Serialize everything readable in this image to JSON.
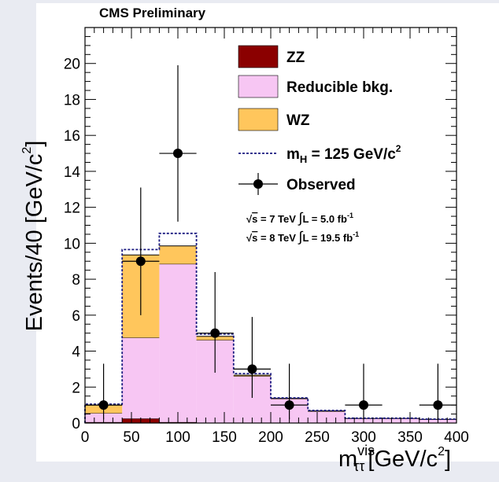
{
  "chart_data": {
    "type": "bar",
    "title": "CMS Preliminary",
    "xlabel_base": "m",
    "xlabel_sup": "vis",
    "xlabel_sub": "ττ",
    "xlabel_unit": "[GeV/c",
    "xlabel_unit_sup": "2",
    "xlabel_unit_end": "]",
    "ylabel_main": "Events/40 [GeV/c",
    "ylabel_sup": "2",
    "ylabel_end": "]",
    "xlim": [
      0,
      400
    ],
    "ylim": [
      0,
      22
    ],
    "xticks": [
      0,
      50,
      100,
      150,
      200,
      250,
      300,
      350,
      400
    ],
    "yticks": [
      0,
      2,
      4,
      6,
      8,
      10,
      12,
      14,
      16,
      18,
      20
    ],
    "bin_edges": [
      0,
      40,
      80,
      120,
      160,
      200,
      240,
      280,
      320,
      360,
      400
    ],
    "stack": [
      {
        "name": "ZZ",
        "color": "#8b0000",
        "values": [
          0.05,
          0.25,
          0.05,
          0.02,
          0.01,
          0.0,
          0.0,
          0.0,
          0.0,
          0.0
        ]
      },
      {
        "name": "Reducible bkg.",
        "color": "#f7c6f3",
        "values": [
          0.5,
          4.5,
          8.8,
          4.6,
          2.6,
          1.35,
          0.65,
          0.25,
          0.25,
          0.2
        ]
      },
      {
        "name": "WZ",
        "color": "#ffc65c",
        "values": [
          0.45,
          4.6,
          1.0,
          0.2,
          0.05,
          0.02,
          0.02,
          0.0,
          0.0,
          0.0
        ]
      }
    ],
    "signal": {
      "name": "m",
      "name_sub": "H",
      "name_rest": " = 125 GeV/c",
      "name_sup": "2",
      "totals": [
        1.05,
        9.65,
        10.55,
        4.95,
        2.75,
        1.4,
        0.7,
        0.27,
        0.27,
        0.22
      ]
    },
    "observed": {
      "name": "Observed",
      "x": [
        20,
        60,
        100,
        140,
        180,
        220,
        300,
        380
      ],
      "y": [
        1,
        9,
        15,
        5,
        3,
        1,
        1,
        1
      ],
      "err_up": [
        2.3,
        4.1,
        4.9,
        3.4,
        2.9,
        2.3,
        2.3,
        2.3
      ],
      "err_down": [
        0.8,
        3.0,
        3.8,
        2.2,
        1.6,
        0.8,
        0.8,
        0.8
      ]
    },
    "lumi": [
      {
        "sqrt": "s",
        "text": " = 7 TeV ",
        "int": "∫",
        "L": "L = 5.0 fb",
        "sup": "-1"
      },
      {
        "sqrt": "s",
        "text": " = 8 TeV ",
        "int": "∫",
        "L": "L = 19.5 fb",
        "sup": "-1"
      }
    ]
  }
}
